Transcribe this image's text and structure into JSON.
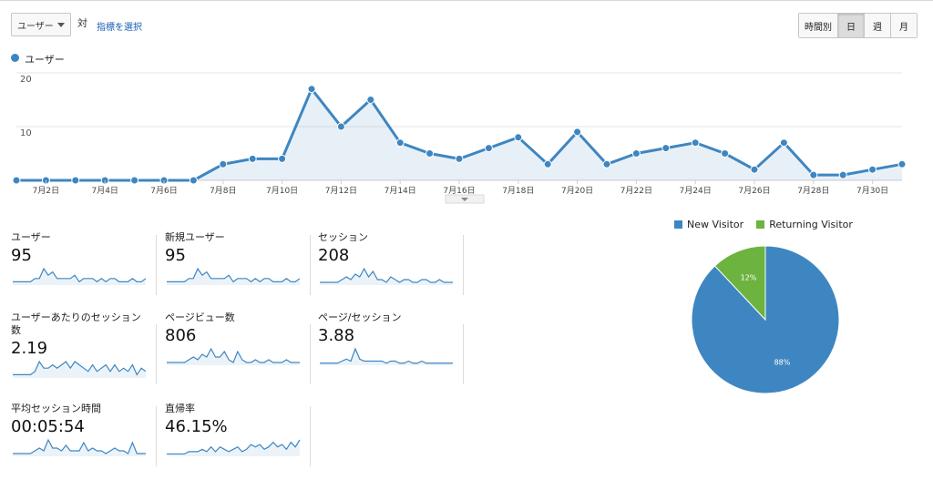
{
  "toolbar": {
    "metric_select": "ユーザー",
    "vs_label": "対",
    "pick_metric_link": "指標を選択",
    "periods": [
      {
        "label": "時間別",
        "active": false
      },
      {
        "label": "日",
        "active": true
      },
      {
        "label": "週",
        "active": false
      },
      {
        "label": "月",
        "active": false
      }
    ]
  },
  "chart_data": [
    {
      "type": "area",
      "legend": "ユーザー",
      "color": "#3e86c1",
      "y_ticks": [
        "20",
        "10"
      ],
      "ylim": [
        0,
        20
      ],
      "x": [
        "7月1日",
        "7月2日",
        "7月3日",
        "7月4日",
        "7月5日",
        "7月6日",
        "7月7日",
        "7月8日",
        "7月9日",
        "7月10日",
        "7月11日",
        "7月12日",
        "7月13日",
        "7月14日",
        "7月15日",
        "7月16日",
        "7月17日",
        "7月18日",
        "7月19日",
        "7月20日",
        "7月21日",
        "7月22日",
        "7月23日",
        "7月24日",
        "7月25日",
        "7月26日",
        "7月27日",
        "7月28日",
        "7月29日",
        "7月30日",
        "7月31日"
      ],
      "x_tick_labels": [
        "7月2日",
        "7月4日",
        "7月6日",
        "7月8日",
        "7月10日",
        "7月12日",
        "7月14日",
        "7月16日",
        "7月18日",
        "7月20日",
        "7月22日",
        "7月24日",
        "7月26日",
        "7月28日",
        "7月30日"
      ],
      "values": [
        0,
        0,
        0,
        0,
        0,
        0,
        0,
        3,
        4,
        4,
        17,
        10,
        15,
        7,
        5,
        4,
        6,
        8,
        3,
        9,
        3,
        5,
        6,
        7,
        5,
        2,
        7,
        1,
        1,
        2,
        3
      ],
      "grid": true
    },
    {
      "type": "pie",
      "legend": [
        {
          "name": "New Visitor",
          "color": "#3e86c1"
        },
        {
          "name": "Returning Visitor",
          "color": "#6db33f"
        }
      ],
      "slices": [
        {
          "name": "New Visitor",
          "value": 88,
          "label": "88%",
          "color": "#3e86c1"
        },
        {
          "name": "Returning Visitor",
          "value": 12,
          "label": "12%",
          "color": "#6db33f"
        }
      ]
    }
  ],
  "metrics": [
    {
      "label": "ユーザー",
      "value": "95",
      "spark": [
        1,
        1,
        1,
        1,
        1,
        2,
        2,
        5,
        3,
        4,
        2,
        2,
        2,
        2,
        3,
        1,
        2,
        2,
        2,
        1,
        2,
        1,
        2,
        2,
        1,
        1,
        1,
        2,
        1,
        1,
        2
      ]
    },
    {
      "label": "新規ユーザー",
      "value": "95",
      "spark": [
        1,
        1,
        1,
        1,
        1,
        2,
        2,
        5,
        3,
        4,
        2,
        2,
        2,
        2,
        3,
        1,
        2,
        2,
        2,
        1,
        2,
        1,
        2,
        2,
        1,
        1,
        1,
        2,
        1,
        1,
        2
      ]
    },
    {
      "label": "セッション",
      "value": "208",
      "spark": [
        1,
        1,
        1,
        1,
        1,
        2,
        3,
        2,
        4,
        3,
        6,
        3,
        5,
        2,
        2,
        1,
        3,
        2,
        1,
        2,
        2,
        1,
        1,
        2,
        2,
        1,
        1,
        2,
        1,
        1,
        1
      ]
    },
    {
      "label": "ユーザーあたりのセッション数",
      "value": "2.19",
      "spark": [
        1,
        1,
        1,
        1,
        1,
        2,
        5,
        3,
        3,
        4,
        3,
        4,
        5,
        3,
        5,
        4,
        3,
        2,
        4,
        2,
        3,
        4,
        2,
        4,
        2,
        3,
        2,
        4,
        1,
        3,
        2
      ]
    },
    {
      "label": "ページビュー数",
      "value": "806",
      "spark": [
        1,
        1,
        1,
        1,
        1,
        2,
        3,
        2,
        4,
        3,
        6,
        3,
        3,
        5,
        2,
        1,
        5,
        2,
        1,
        1,
        2,
        1,
        1,
        2,
        1,
        1,
        1,
        2,
        1,
        1,
        1
      ]
    },
    {
      "label": "ページ/セッション",
      "value": "3.88",
      "spark": [
        1,
        1,
        1,
        1,
        1,
        2,
        3,
        2,
        8,
        3,
        2,
        2,
        2,
        2,
        2,
        1,
        2,
        2,
        1,
        1,
        2,
        1,
        1,
        2,
        1,
        1,
        1,
        1,
        1,
        1,
        1
      ]
    },
    {
      "label": "平均セッション時間",
      "value": "00:05:54",
      "spark": [
        1,
        1,
        1,
        1,
        1,
        2,
        3,
        2,
        6,
        3,
        3,
        2,
        4,
        2,
        2,
        2,
        5,
        2,
        3,
        2,
        2,
        1,
        2,
        3,
        2,
        2,
        1,
        5,
        1,
        1,
        1
      ]
    },
    {
      "label": "直帰率",
      "value": "46.15%",
      "spark": [
        1,
        1,
        1,
        1,
        1,
        2,
        2,
        2,
        3,
        2,
        4,
        2,
        4,
        3,
        2,
        3,
        4,
        2,
        3,
        5,
        4,
        5,
        3,
        4,
        6,
        4,
        5,
        3,
        6,
        4,
        7
      ]
    }
  ]
}
